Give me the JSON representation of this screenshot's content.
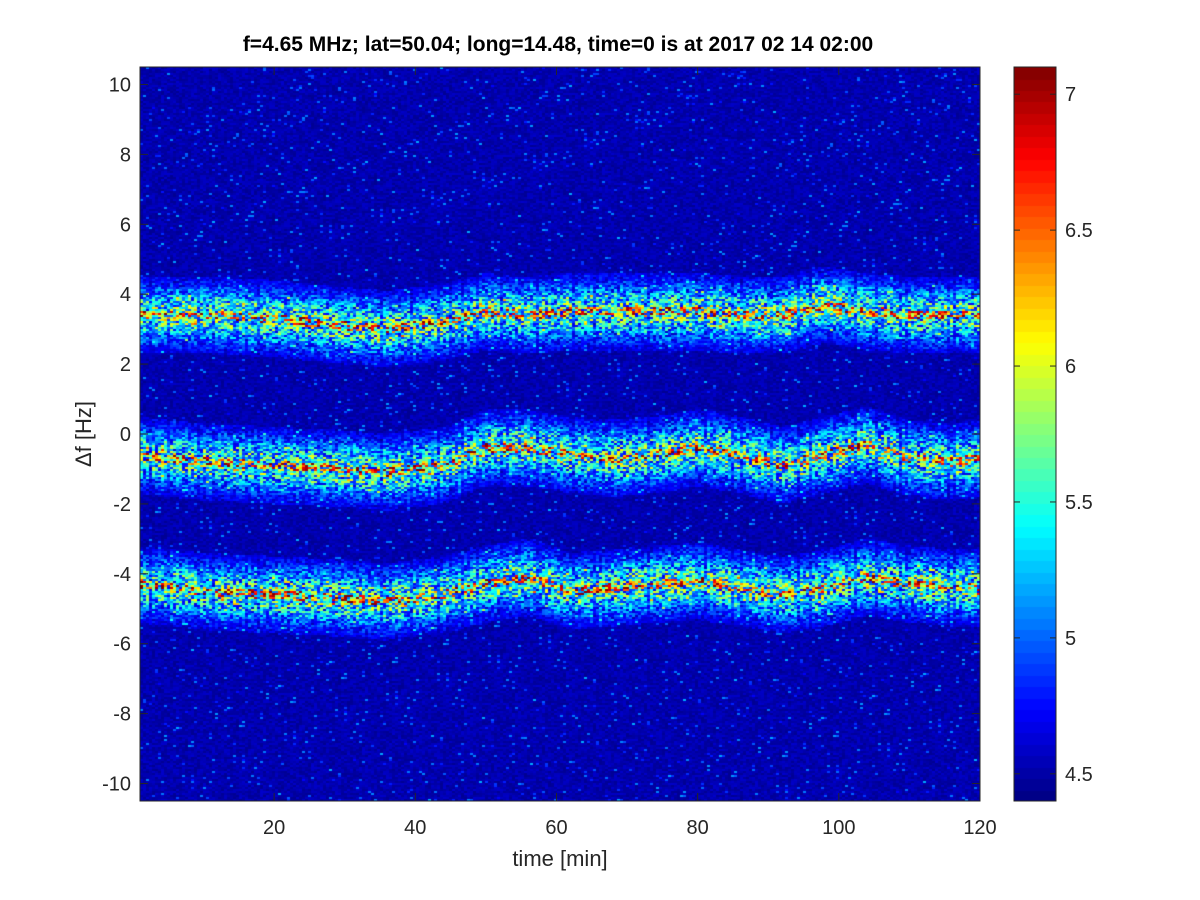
{
  "chart_data": {
    "type": "heatmap",
    "title": "f=4.65 MHz;  lat=50.04; long=14.48, time=0 is at 2017 02 14 02:00",
    "xlabel": "time [min]",
    "ylabel": "Δf [Hz]",
    "xlim": [
      1,
      120
    ],
    "ylim": [
      -10.5,
      10.5
    ],
    "x_ticks": [
      20,
      40,
      60,
      80,
      100,
      120
    ],
    "y_ticks": [
      -10,
      -8,
      -6,
      -4,
      -2,
      0,
      2,
      4,
      6,
      8,
      10
    ],
    "colorbar": {
      "colormap": "jet",
      "range": [
        4.4,
        7.1
      ],
      "ticks": [
        4.5,
        5,
        5.5,
        6,
        6.5,
        7
      ]
    },
    "background_value": 4.45,
    "bands": [
      {
        "trace_x": [
          0,
          10,
          20,
          30,
          36,
          44,
          50,
          56,
          62,
          68,
          74,
          80,
          86,
          92,
          98,
          104,
          110,
          116,
          120
        ],
        "trace_y": [
          3.4,
          3.4,
          3.3,
          3.1,
          3.0,
          3.2,
          3.5,
          3.4,
          3.5,
          3.5,
          3.5,
          3.5,
          3.4,
          3.4,
          3.7,
          3.5,
          3.4,
          3.4,
          3.4
        ]
      },
      {
        "trace_x": [
          0,
          10,
          20,
          30,
          36,
          44,
          50,
          56,
          62,
          68,
          74,
          80,
          86,
          92,
          98,
          104,
          110,
          116,
          120
        ],
        "trace_y": [
          -0.6,
          -0.8,
          -0.9,
          -1.0,
          -1.1,
          -0.9,
          -0.4,
          -0.4,
          -0.6,
          -0.7,
          -0.6,
          -0.4,
          -0.6,
          -0.9,
          -0.6,
          -0.3,
          -0.7,
          -0.8,
          -0.7
        ]
      },
      {
        "trace_x": [
          0,
          10,
          20,
          30,
          36,
          44,
          50,
          56,
          62,
          68,
          74,
          80,
          86,
          92,
          98,
          104,
          110,
          116,
          120
        ],
        "trace_y": [
          -4.3,
          -4.5,
          -4.6,
          -4.7,
          -4.8,
          -4.6,
          -4.3,
          -4.1,
          -4.5,
          -4.4,
          -4.3,
          -4.2,
          -4.4,
          -4.6,
          -4.4,
          -4.1,
          -4.3,
          -4.4,
          -4.4
        ]
      }
    ]
  }
}
